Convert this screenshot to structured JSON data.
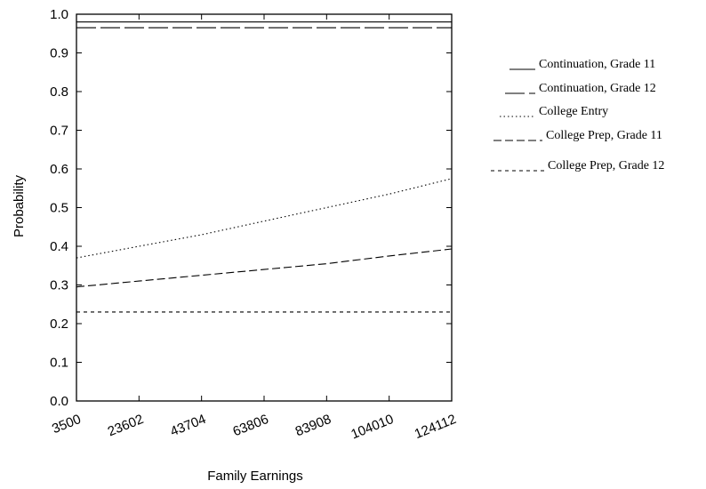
{
  "chart_data": {
    "type": "line",
    "title": "",
    "xlabel": "Family Earnings",
    "ylabel": "Probability",
    "x": [
      3500,
      23602,
      43704,
      63806,
      83908,
      104010,
      124112
    ],
    "x_tick_labels": [
      "3500",
      "23602",
      "43704",
      "63806",
      "83908",
      "104010",
      "124112"
    ],
    "y_tick_labels": [
      "0.0",
      "0.1",
      "0.2",
      "0.3",
      "0.4",
      "0.5",
      "0.6",
      "0.7",
      "0.8",
      "0.9",
      "1.0"
    ],
    "xlim": [
      3500,
      124112
    ],
    "ylim": [
      0.0,
      1.0
    ],
    "grid": false,
    "legend_position": "right",
    "series": [
      {
        "name": "Continuation, Grade 11",
        "dash": "solid",
        "values": [
          0.98,
          0.98,
          0.98,
          0.98,
          0.98,
          0.98,
          0.98
        ]
      },
      {
        "name": "Continuation, Grade 12",
        "dash": "long-dash",
        "values": [
          0.965,
          0.965,
          0.965,
          0.965,
          0.965,
          0.965,
          0.965
        ]
      },
      {
        "name": "College Entry",
        "dash": "dotted",
        "values": [
          0.37,
          0.4,
          0.43,
          0.465,
          0.5,
          0.535,
          0.575
        ]
      },
      {
        "name": "College Prep, Grade 11",
        "dash": "dashed",
        "values": [
          0.295,
          0.31,
          0.325,
          0.34,
          0.355,
          0.375,
          0.393
        ]
      },
      {
        "name": "College Prep, Grade 12",
        "dash": "short-dash",
        "values": [
          0.23,
          0.23,
          0.23,
          0.23,
          0.23,
          0.23,
          0.23
        ]
      }
    ]
  }
}
